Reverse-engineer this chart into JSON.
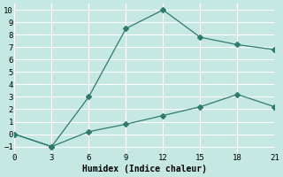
{
  "line1_x": [
    0,
    3,
    6,
    9,
    12,
    15,
    18,
    21
  ],
  "line1_y": [
    0,
    -1,
    3,
    8.5,
    10,
    7.8,
    7.2,
    6.8
  ],
  "line2_x": [
    0,
    3,
    6,
    9,
    12,
    15,
    18,
    21
  ],
  "line2_y": [
    0,
    -1,
    0.2,
    0.8,
    1.5,
    2.2,
    3.2,
    2.2
  ],
  "line_color": "#2e7b6e",
  "marker": "D",
  "marker_size": 3,
  "xlabel": "Humidex (Indice chaleur)",
  "xlim": [
    0,
    21
  ],
  "ylim": [
    -1.5,
    10.5
  ],
  "xticks": [
    0,
    3,
    6,
    9,
    12,
    15,
    18,
    21
  ],
  "yticks": [
    -1,
    0,
    1,
    2,
    3,
    4,
    5,
    6,
    7,
    8,
    9,
    10
  ],
  "bg_color": "#c5e8e3",
  "grid_color": "#b0d8d2",
  "tick_fontsize": 6.5
}
